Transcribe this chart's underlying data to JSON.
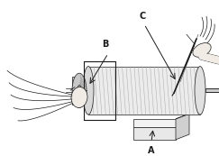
{
  "background_color": "#ffffff",
  "label_A": "A",
  "label_B": "B",
  "label_C": "C",
  "fig_width": 2.43,
  "fig_height": 1.73,
  "dpi": 100,
  "line_color": "#1a1a1a",
  "light_fill": "#f0f0f0",
  "mid_fill": "#d8d8d8",
  "dark_fill": "#b0b0b0"
}
